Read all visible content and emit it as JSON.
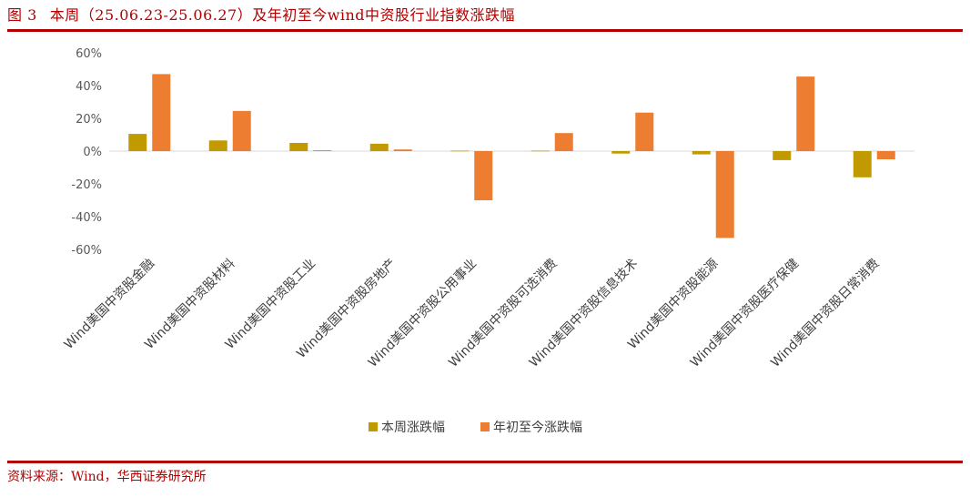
{
  "header": {
    "figure_no": "图 3",
    "title": "本周（25.06.23-25.06.27）及年初至今wind中资股行业指数涨跌幅"
  },
  "footer": {
    "source": "资料来源：Wind，华西证券研究所"
  },
  "colors": {
    "accent": "#b20000",
    "series_week": "#c09a00",
    "series_ytd": "#ed7d31",
    "axis": "#d9d9d9"
  },
  "chart_data": {
    "type": "bar",
    "categories": [
      "Wind美国中资股金融",
      "Wind美国中资股材料",
      "Wind美国中资股工业",
      "Wind美国中资股房地产",
      "Wind美国中资股公用事业",
      "Wind美国中资股可选消费",
      "Wind美国中资股信息技术",
      "Wind美国中资股能源",
      "Wind美国中资股医疗保健",
      "Wind美国中资股日常消费"
    ],
    "series": [
      {
        "name": "本周涨跌幅",
        "values": [
          10.5,
          6.5,
          5.0,
          4.5,
          0.3,
          0.3,
          -1.5,
          -2.0,
          -5.5,
          -16.0
        ]
      },
      {
        "name": "年初至今涨跌幅",
        "values": [
          47.0,
          24.5,
          0.5,
          1.0,
          -30.0,
          11.0,
          23.5,
          -53.0,
          45.5,
          -5.0
        ]
      }
    ],
    "ylim": [
      -60,
      60
    ],
    "yticks": [
      "60%",
      "40%",
      "20%",
      "0%",
      "-20%",
      "-40%",
      "-60%"
    ],
    "grid": false,
    "legend": "bottom"
  }
}
